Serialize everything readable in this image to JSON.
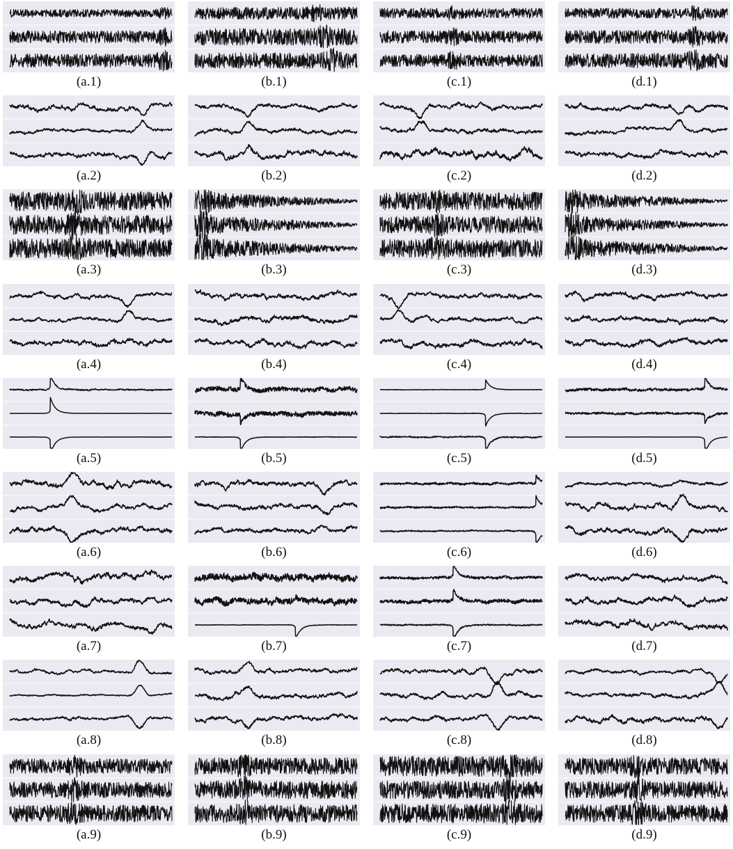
{
  "chart_data": {
    "type": "line",
    "style": {
      "panel_background": "#eaeaf2",
      "line_color": "#111111",
      "grid_color": "#ffffff"
    },
    "columns": [
      "a",
      "b",
      "c",
      "d"
    ],
    "rows": 9,
    "traces_per_panel": 3,
    "panels": [
      {
        "label": "(a.1)",
        "kind": "noise",
        "amp": [
          0.35,
          0.55,
          0.6
        ],
        "burst_at": [
          0.95,
          0.95,
          0.95
        ]
      },
      {
        "label": "(b.1)",
        "kind": "noise",
        "amp": [
          0.55,
          0.75,
          0.7
        ],
        "burst_at": [
          0.75,
          0.8,
          0.85
        ]
      },
      {
        "label": "(c.1)",
        "kind": "noise",
        "amp": [
          0.45,
          0.55,
          0.55
        ],
        "burst_at": [
          0.45,
          0.45,
          0.45
        ]
      },
      {
        "label": "(d.1)",
        "kind": "noise",
        "amp": [
          0.45,
          0.6,
          0.65
        ],
        "burst_at": [
          0.8,
          0.8,
          0.8
        ]
      },
      {
        "label": "(a.2)",
        "kind": "wander",
        "amp": [
          0.7,
          0.55,
          0.7
        ],
        "event_at": 0.82,
        "event_signs": [
          -1,
          1,
          -1
        ]
      },
      {
        "label": "(b.2)",
        "kind": "wander",
        "amp": [
          0.7,
          0.7,
          0.9
        ],
        "event_at": 0.33,
        "event_signs": [
          -1,
          1,
          0.6
        ]
      },
      {
        "label": "(c.2)",
        "kind": "wander",
        "amp": [
          0.7,
          0.7,
          1.0
        ],
        "event_at": 0.25,
        "event_signs": [
          -1,
          1,
          0.5
        ]
      },
      {
        "label": "(d.2)",
        "kind": "wander",
        "amp": [
          0.75,
          0.65,
          0.75
        ],
        "event_at": 0.7,
        "event_signs": [
          -1,
          1,
          0.3
        ]
      },
      {
        "label": "(a.3)",
        "kind": "noise",
        "amp": [
          0.85,
          0.85,
          0.85
        ],
        "burst_at": [
          0.4,
          0.4,
          0.4
        ]
      },
      {
        "label": "(b.3)",
        "kind": "decay",
        "amp": [
          0.85,
          0.9,
          0.95
        ],
        "burst_at": [
          0.05,
          0.05,
          0.05
        ]
      },
      {
        "label": "(c.3)",
        "kind": "noise",
        "amp": [
          0.8,
          0.75,
          0.8
        ],
        "burst_at": [
          0.35,
          0.35,
          0.35
        ]
      },
      {
        "label": "(d.3)",
        "kind": "decay",
        "amp": [
          0.8,
          0.8,
          0.9
        ],
        "burst_at": [
          0.05,
          0.05,
          0.05
        ]
      },
      {
        "label": "(a.4)",
        "kind": "wander",
        "amp": [
          0.65,
          0.55,
          0.75
        ],
        "event_at": 0.73,
        "event_signs": [
          -1,
          1,
          0.3
        ]
      },
      {
        "label": "(b.4)",
        "kind": "wander",
        "amp": [
          0.8,
          0.85,
          0.85
        ],
        "event_at": -1,
        "event_signs": [
          0,
          0,
          0
        ]
      },
      {
        "label": "(c.4)",
        "kind": "wander",
        "amp": [
          0.65,
          0.6,
          0.8
        ],
        "event_at": 0.12,
        "event_signs": [
          -1,
          1,
          0.3
        ]
      },
      {
        "label": "(d.4)",
        "kind": "wander",
        "amp": [
          0.75,
          0.8,
          0.8
        ],
        "event_at": -1,
        "event_signs": [
          0,
          0,
          0
        ]
      },
      {
        "label": "(a.5)",
        "kind": "spike",
        "amp": [
          0.15,
          0.02,
          0.02
        ],
        "event_at": 0.25,
        "event_signs": [
          1.4,
          1.6,
          -1.8
        ]
      },
      {
        "label": "(b.5)",
        "kind": "spike",
        "amp": [
          0.5,
          0.55,
          0.06
        ],
        "event_at": 0.28,
        "event_signs": [
          1.2,
          -1.0,
          -1.6
        ]
      },
      {
        "label": "(c.5)",
        "kind": "spike",
        "amp": [
          0.05,
          0.05,
          0.15
        ],
        "event_at": 0.65,
        "event_signs": [
          1.0,
          -1.3,
          -1.5
        ]
      },
      {
        "label": "(d.5)",
        "kind": "spike",
        "amp": [
          0.3,
          0.25,
          0.02
        ],
        "event_at": 0.86,
        "event_signs": [
          1.4,
          -1.0,
          -1.8
        ]
      },
      {
        "label": "(a.6)",
        "kind": "wander",
        "amp": [
          0.85,
          0.7,
          0.8
        ],
        "event_at": 0.38,
        "event_signs": [
          1,
          1,
          -1
        ]
      },
      {
        "label": "(b.6)",
        "kind": "wander",
        "amp": [
          0.85,
          0.85,
          0.75
        ],
        "event_at": 0.8,
        "event_signs": [
          -0.6,
          -0.6,
          0.5
        ]
      },
      {
        "label": "(c.6)",
        "kind": "spike",
        "amp": [
          0.25,
          0.2,
          0.15
        ],
        "event_at": 0.96,
        "event_signs": [
          1.0,
          1.2,
          -1.5
        ]
      },
      {
        "label": "(d.6)",
        "kind": "wander",
        "amp": [
          0.55,
          0.75,
          0.75
        ],
        "event_at": 0.72,
        "event_signs": [
          0.4,
          1.2,
          -1.2
        ]
      },
      {
        "label": "(a.7)",
        "kind": "wander",
        "amp": [
          0.9,
          0.9,
          0.8
        ],
        "event_at": 0.88,
        "event_signs": [
          0.3,
          0.3,
          -1.1
        ]
      },
      {
        "label": "(b.7)",
        "kind": "spike",
        "amp": [
          0.75,
          0.7,
          0.05
        ],
        "event_at": 0.62,
        "event_signs": [
          0.2,
          0.4,
          -1.5
        ]
      },
      {
        "label": "(c.7)",
        "kind": "spike",
        "amp": [
          0.3,
          0.4,
          0.15
        ],
        "event_at": 0.45,
        "event_signs": [
          1.5,
          1.1,
          -1.7
        ]
      },
      {
        "label": "(d.7)",
        "kind": "wander",
        "amp": [
          0.85,
          0.9,
          0.9
        ],
        "event_at": -1,
        "event_signs": [
          0,
          0,
          0
        ]
      },
      {
        "label": "(a.8)",
        "kind": "wander",
        "amp": [
          0.45,
          0.3,
          0.5
        ],
        "event_at": 0.8,
        "event_signs": [
          1.1,
          1.0,
          -1.0
        ]
      },
      {
        "label": "(b.8)",
        "kind": "wander",
        "amp": [
          0.55,
          0.75,
          0.75
        ],
        "event_at": 0.33,
        "event_signs": [
          1.0,
          1.0,
          -1.0
        ]
      },
      {
        "label": "(c.8)",
        "kind": "wander",
        "amp": [
          0.65,
          0.65,
          0.7
        ],
        "event_at": 0.72,
        "event_signs": [
          -1.0,
          1.1,
          -1.1
        ]
      },
      {
        "label": "(d.8)",
        "kind": "wander",
        "amp": [
          0.55,
          0.65,
          0.75
        ],
        "event_at": 0.95,
        "event_signs": [
          -1.0,
          1.2,
          -1.0
        ]
      },
      {
        "label": "(a.9)",
        "kind": "noise",
        "amp": [
          0.65,
          0.7,
          0.75
        ],
        "burst_at": [
          0.4,
          0.4,
          0.4
        ]
      },
      {
        "label": "(b.9)",
        "kind": "noise",
        "amp": [
          0.75,
          0.8,
          0.8
        ],
        "burst_at": [
          0.3,
          0.3,
          0.3
        ]
      },
      {
        "label": "(c.9)",
        "kind": "noise",
        "amp": [
          0.9,
          0.8,
          0.85
        ],
        "burst_at": [
          0.8,
          0.8,
          0.8
        ]
      },
      {
        "label": "(d.9)",
        "kind": "noise",
        "amp": [
          0.75,
          0.75,
          0.8
        ],
        "burst_at": [
          0.45,
          0.45,
          0.45
        ]
      }
    ]
  }
}
